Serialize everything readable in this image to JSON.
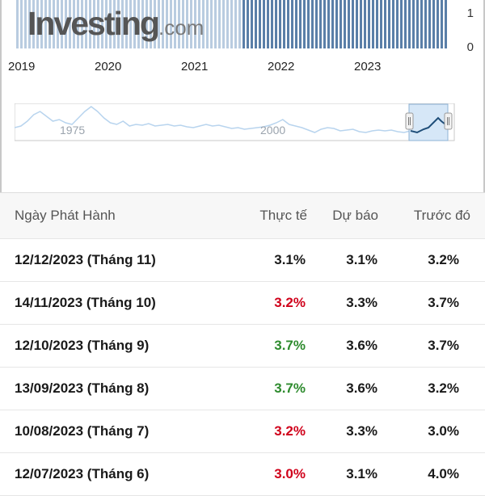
{
  "chart": {
    "logo_main": "Investing",
    "logo_suffix": ".com",
    "y_ticks": [
      "1",
      "0"
    ],
    "x_ticks": [
      "2019",
      "2020",
      "2021",
      "2022",
      "2023"
    ],
    "navigator_labels": [
      "1975",
      "2000"
    ],
    "colors": {
      "bar_light": "#b9cce0",
      "bar_dark": "#5a7fa8",
      "navigator_line": "#b8d4ee",
      "navigator_selected_line": "#1f4e79",
      "navigator_selected_fill": "#d6e7f7"
    }
  },
  "table": {
    "headers": {
      "date": "Ngày Phát Hành",
      "actual": "Thực tế",
      "forecast": "Dự báo",
      "previous": "Trước đó"
    },
    "rows": [
      {
        "date": "12/12/2023 (Tháng 11)",
        "actual": "3.1%",
        "forecast": "3.1%",
        "previous": "3.2%",
        "actual_status": "neutral"
      },
      {
        "date": "14/11/2023 (Tháng 10)",
        "actual": "3.2%",
        "forecast": "3.3%",
        "previous": "3.7%",
        "actual_status": "up"
      },
      {
        "date": "12/10/2023 (Tháng 9)",
        "actual": "3.7%",
        "forecast": "3.6%",
        "previous": "3.7%",
        "actual_status": "down"
      },
      {
        "date": "13/09/2023 (Tháng 8)",
        "actual": "3.7%",
        "forecast": "3.6%",
        "previous": "3.2%",
        "actual_status": "down"
      },
      {
        "date": "10/08/2023 (Tháng 7)",
        "actual": "3.2%",
        "forecast": "3.3%",
        "previous": "3.0%",
        "actual_status": "up"
      },
      {
        "date": "12/07/2023 (Tháng 6)",
        "actual": "3.0%",
        "forecast": "3.1%",
        "previous": "4.0%",
        "actual_status": "up"
      }
    ]
  }
}
